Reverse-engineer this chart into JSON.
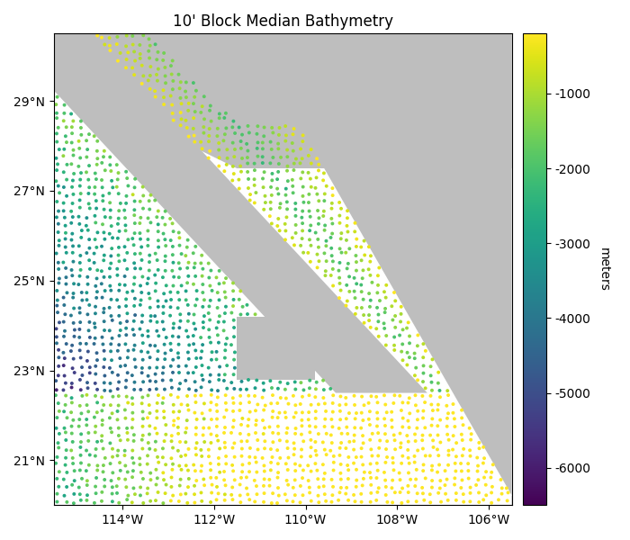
{
  "title": "10' Block Median Bathymetry",
  "xlim": [
    -115.5,
    -105.5
  ],
  "ylim": [
    20.0,
    30.5
  ],
  "xticks": [
    -114,
    -112,
    -110,
    -108,
    -106
  ],
  "xtick_labels": [
    "114°W",
    "112°W",
    "110°W",
    "108°W",
    "106°W"
  ],
  "yticks": [
    21,
    23,
    25,
    27,
    29
  ],
  "ytick_labels": [
    "21°N",
    "23°N",
    "25°N",
    "27°N",
    "29°N"
  ],
  "colormap": "viridis",
  "clim_min": -6500,
  "clim_max": -200,
  "colorbar_label": "meters",
  "colorbar_ticks": [
    -6000,
    -5000,
    -4000,
    -3000,
    -2000,
    -1000
  ],
  "colorbar_tick_labels": [
    "-6000",
    "-5000",
    "-4000",
    "-3000",
    "-2000",
    "-1000"
  ],
  "land_color": "#bebebe",
  "water_color": "white",
  "point_size": 8,
  "random_seed": 42,
  "lon_min": -115.5,
  "lon_max": -105.5,
  "lat_min": 20.0,
  "lat_max": 30.5,
  "grid_step_deg": 0.1667
}
